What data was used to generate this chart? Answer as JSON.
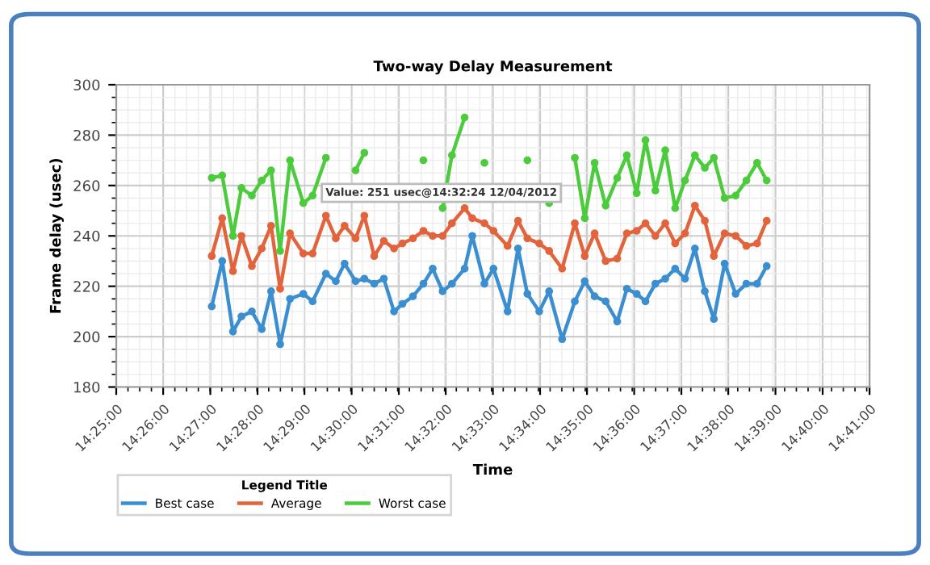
{
  "chart_data": {
    "type": "line",
    "title": "Two-way Delay Measurement",
    "xlabel": "Time",
    "ylabel": "Frame delay (usec)",
    "legend_title": "Legend Title",
    "x": [
      14.4505,
      14.4542,
      14.458,
      14.461,
      14.4647,
      14.4682,
      14.4715,
      14.4747,
      14.4782,
      14.4829,
      14.4862,
      14.4909,
      14.4944,
      14.4975,
      14.5014,
      14.5045,
      14.508,
      14.5114,
      14.515,
      14.518,
      14.5217,
      14.5254,
      14.5287,
      14.5322,
      14.5355,
      14.54,
      14.5427,
      14.547,
      14.5502,
      14.5552,
      14.5589,
      14.5622,
      14.5664,
      14.5699,
      14.5745,
      14.579,
      14.5825,
      14.586,
      14.5899,
      14.594,
      14.5974,
      14.6009,
      14.604,
      14.6075,
      14.611,
      14.6145,
      14.618,
      14.6215,
      14.625,
      14.6282,
      14.632,
      14.6359,
      14.6397,
      14.6435,
      14.6469
    ],
    "series": [
      {
        "name": "Best case",
        "color": "#3b8fd0",
        "values": [
          212,
          230,
          202,
          208,
          210,
          203,
          218,
          197,
          215,
          217,
          214,
          225,
          222,
          229,
          222,
          223,
          221,
          223,
          210,
          213,
          216,
          221,
          227,
          218,
          221,
          227,
          240,
          221,
          227,
          210,
          235,
          217,
          210,
          218,
          199,
          214,
          222,
          216,
          214,
          206,
          219,
          217,
          214,
          221,
          223,
          227,
          223,
          235,
          218,
          207,
          229,
          217,
          221,
          221,
          228
        ]
      },
      {
        "name": "Average",
        "color": "#e2643c",
        "values": [
          232,
          247,
          226,
          240,
          228,
          235,
          244,
          219,
          241,
          233,
          233,
          248,
          239,
          244,
          239,
          248,
          232,
          238,
          235,
          237,
          239,
          242,
          240,
          240,
          245,
          251,
          247,
          245,
          242,
          236,
          246,
          239,
          237,
          234,
          227,
          245,
          232,
          241,
          230,
          231,
          241,
          242,
          245,
          240,
          245,
          237,
          241,
          252,
          246,
          232,
          241,
          240,
          236,
          237,
          246
        ]
      },
      {
        "name": "Worst case",
        "color": "#4ccc3c",
        "values": [
          263,
          264,
          240,
          259,
          256,
          262,
          266,
          234,
          270,
          253,
          256,
          271,
          null,
          null,
          266,
          273,
          null,
          null,
          null,
          null,
          null,
          270,
          null,
          251,
          272,
          287,
          null,
          269,
          null,
          null,
          null,
          270,
          null,
          253,
          null,
          271,
          247,
          269,
          252,
          263,
          272,
          257,
          278,
          258,
          274,
          251,
          262,
          272,
          267,
          271,
          255,
          256,
          262,
          269,
          262
        ]
      }
    ],
    "xlim": [
      14.4167,
      14.6833
    ],
    "xticks": [
      {
        "value": 14.4167,
        "label": "14:25:00"
      },
      {
        "value": 14.4333,
        "label": "14:26:00"
      },
      {
        "value": 14.45,
        "label": "14:27:00"
      },
      {
        "value": 14.4667,
        "label": "14:28:00"
      },
      {
        "value": 14.4833,
        "label": "14:29:00"
      },
      {
        "value": 14.5,
        "label": "14:30:00"
      },
      {
        "value": 14.5167,
        "label": "14:31:00"
      },
      {
        "value": 14.5333,
        "label": "14:32:00"
      },
      {
        "value": 14.55,
        "label": "14:33:00"
      },
      {
        "value": 14.5667,
        "label": "14:34:00"
      },
      {
        "value": 14.5833,
        "label": "14:35:00"
      },
      {
        "value": 14.6,
        "label": "14:36:00"
      },
      {
        "value": 14.6167,
        "label": "14:37:00"
      },
      {
        "value": 14.6333,
        "label": "14:38:00"
      },
      {
        "value": 14.65,
        "label": "14:39:00"
      },
      {
        "value": 14.6667,
        "label": "14:40:00"
      },
      {
        "value": 14.6833,
        "label": "14:41:00"
      }
    ],
    "ylim": [
      180,
      300
    ],
    "yticks": [
      180,
      200,
      220,
      240,
      260,
      280,
      300
    ],
    "annotations": [
      {
        "text": "Value: 251 usec@14:32:24 12/04/2012",
        "x": 14.54,
        "y": 251
      }
    ],
    "grid": true,
    "legend": "bottom",
    "marker": "circle",
    "line_style": "solid"
  }
}
